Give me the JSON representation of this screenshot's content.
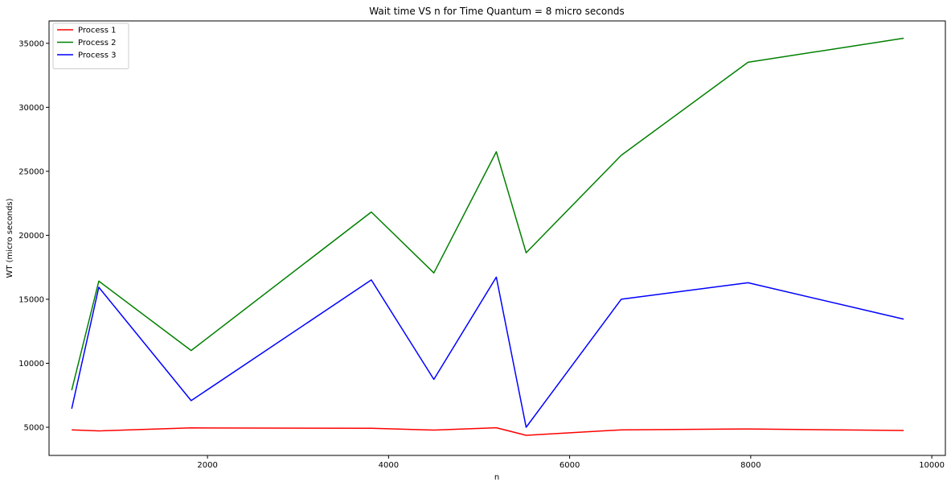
{
  "chart_data": {
    "type": "line",
    "title": "Wait time VS n for Time Quantum = 8 micro seconds",
    "xlabel": "n",
    "ylabel": "WT (micro seconds)",
    "xlim": [
      250,
      10150
    ],
    "ylim": [
      2800,
      36750
    ],
    "xticks": [
      2000,
      4000,
      6000,
      8000,
      10000
    ],
    "yticks": [
      5000,
      10000,
      15000,
      20000,
      25000,
      30000,
      35000
    ],
    "grid": false,
    "legend_position": "top-left",
    "x": [
      500,
      800,
      1820,
      3810,
      4500,
      5190,
      5520,
      6570,
      7970,
      9690
    ],
    "series": [
      {
        "name": "Process 1",
        "color": "#ff0000",
        "values": [
          4800,
          4720,
          4950,
          4920,
          4780,
          4960,
          4370,
          4800,
          4870,
          4750
        ]
      },
      {
        "name": "Process 2",
        "color": "#008000",
        "values": [
          7900,
          16420,
          11000,
          21820,
          17060,
          26530,
          18640,
          26250,
          33520,
          35400
        ]
      },
      {
        "name": "Process 3",
        "color": "#0000ff",
        "values": [
          6450,
          15940,
          7080,
          16510,
          8740,
          16730,
          5000,
          15000,
          16290,
          13450
        ]
      }
    ]
  }
}
